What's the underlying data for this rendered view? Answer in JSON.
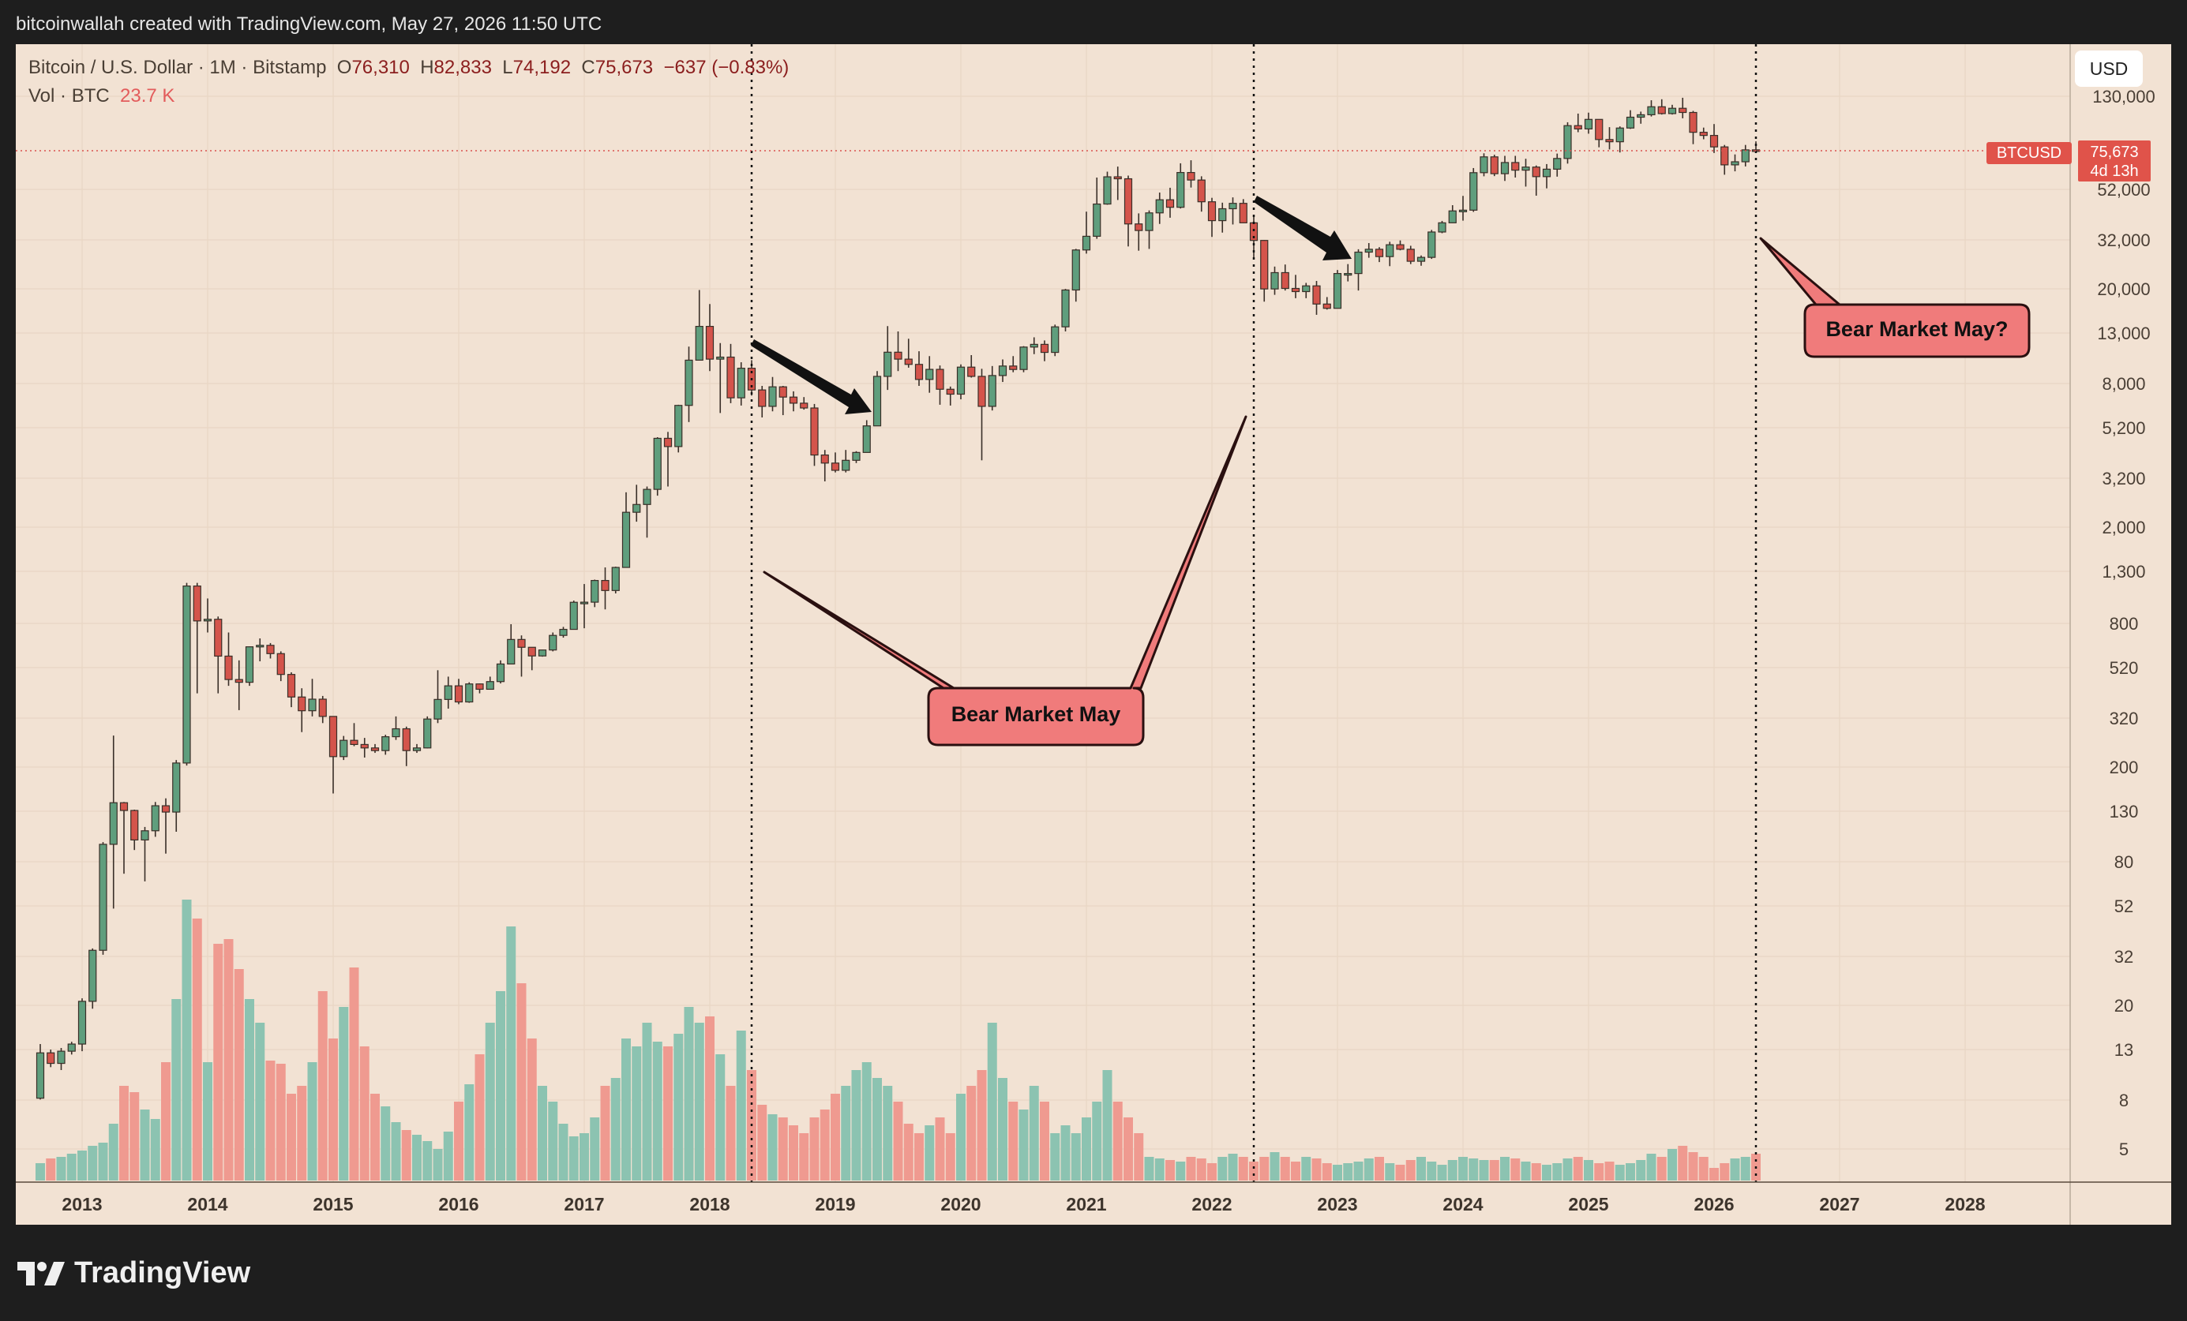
{
  "header": {
    "attribution": "bitcoinwallah created with TradingView.com, May 27, 2026 11:50 UTC"
  },
  "legend": {
    "symbol": "Bitcoin / U.S. Dollar · 1M · Bitstamp",
    "open_label": "O",
    "open": "76,310",
    "high_label": "H",
    "high": "82,833",
    "low_label": "L",
    "low": "74,192",
    "close_label": "C",
    "close": "75,673",
    "change": "−637 (−0.83%)",
    "volume_label": "Vol · BTC",
    "volume": "23.7 K"
  },
  "toolbar": {
    "currency_button": "USD"
  },
  "price_tag": {
    "symbol": "BTCUSD",
    "price": "75,673",
    "countdown": "4d 13h"
  },
  "annotations": {
    "callout_1": "Bear Market May",
    "callout_2": "Bear Market May?"
  },
  "footer": {
    "brand": "TradingView"
  },
  "colors": {
    "background": "#f2e2d3",
    "up": "#5f9e7d",
    "down": "#d4544b",
    "vol_up": "#8cc3b1",
    "vol_down": "#ef9a90",
    "callout_fill": "#f07b7b"
  },
  "chart_data": {
    "type": "candlestick",
    "x_axis": {
      "ticks": [
        "2013",
        "2014",
        "2015",
        "2016",
        "2017",
        "2018",
        "2019",
        "2020",
        "2021",
        "2022",
        "2023",
        "2024",
        "2025",
        "2026",
        "2027",
        "2028"
      ]
    },
    "y_axis": {
      "scale": "log",
      "ticks": [
        "130,000",
        "52,000",
        "32,000",
        "20,000",
        "13,000",
        "8,000",
        "5,200",
        "3,200",
        "2,000",
        "1,300",
        "800",
        "520",
        "320",
        "200",
        "130",
        "80",
        "52",
        "32",
        "20",
        "13",
        "8",
        "5"
      ]
    },
    "vertical_markers": [
      "2018-05",
      "2022-05",
      "2026-05"
    ],
    "last_price": 75673,
    "candles": [
      [
        "2012-09",
        12.4,
        8,
        13.5,
        7.9
      ],
      [
        "2012-10",
        11.2,
        12.4,
        12.8,
        10.8
      ],
      [
        "2012-11",
        12.6,
        11.2,
        13,
        10.5
      ],
      [
        "2012-12",
        13.5,
        12.6,
        13.8,
        12.2
      ],
      [
        "2013-01",
        20.4,
        13.5,
        21,
        12.6
      ],
      [
        "2013-02",
        33.4,
        20.4,
        34,
        19
      ],
      [
        "2013-03",
        93,
        33.4,
        95,
        32
      ],
      [
        "2013-04",
        139,
        93,
        266,
        50
      ],
      [
        "2013-05",
        129,
        139,
        140,
        70
      ],
      [
        "2013-06",
        97,
        129,
        130,
        88
      ],
      [
        "2013-07",
        106,
        97,
        110,
        65
      ],
      [
        "2013-08",
        135,
        106,
        140,
        100
      ],
      [
        "2013-09",
        127,
        135,
        145,
        85
      ],
      [
        "2013-10",
        204,
        127,
        210,
        105
      ],
      [
        "2013-11",
        1128,
        204,
        1163,
        199
      ],
      [
        "2013-12",
        805,
        1128,
        1163,
        400
      ],
      [
        "2014-01",
        818,
        805,
        1000,
        720
      ],
      [
        "2014-02",
        573,
        818,
        840,
        400
      ],
      [
        "2014-03",
        457,
        573,
        720,
        430
      ],
      [
        "2014-04",
        445,
        457,
        550,
        340
      ],
      [
        "2014-05",
        627,
        445,
        630,
        430
      ],
      [
        "2014-06",
        636,
        627,
        680,
        545
      ],
      [
        "2014-07",
        587,
        636,
        650,
        560
      ],
      [
        "2014-08",
        480,
        587,
        600,
        450
      ],
      [
        "2014-09",
        386,
        480,
        490,
        350
      ],
      [
        "2014-10",
        338,
        386,
        420,
        275
      ],
      [
        "2014-11",
        378,
        338,
        460,
        320
      ],
      [
        "2014-12",
        320,
        378,
        390,
        300
      ],
      [
        "2015-01",
        217,
        320,
        320,
        152
      ],
      [
        "2015-02",
        254,
        217,
        265,
        210
      ],
      [
        "2015-03",
        244,
        254,
        300,
        240
      ],
      [
        "2015-04",
        236,
        244,
        260,
        215
      ],
      [
        "2015-05",
        230,
        236,
        245,
        225
      ],
      [
        "2015-06",
        263,
        230,
        268,
        221
      ],
      [
        "2015-07",
        284,
        263,
        320,
        255
      ],
      [
        "2015-08",
        230,
        284,
        290,
        198
      ],
      [
        "2015-09",
        236,
        230,
        245,
        225
      ],
      [
        "2015-10",
        312,
        236,
        320,
        235
      ],
      [
        "2015-11",
        377,
        312,
        500,
        300
      ],
      [
        "2015-12",
        430,
        377,
        470,
        345
      ],
      [
        "2016-01",
        368,
        430,
        460,
        360
      ],
      [
        "2016-02",
        438,
        368,
        445,
        365
      ],
      [
        "2016-03",
        416,
        438,
        440,
        400
      ],
      [
        "2016-04",
        448,
        416,
        470,
        415
      ],
      [
        "2016-05",
        531,
        448,
        550,
        440
      ],
      [
        "2016-06",
        673,
        531,
        780,
        530
      ],
      [
        "2016-07",
        624,
        673,
        700,
        470
      ],
      [
        "2016-08",
        574,
        624,
        625,
        500
      ],
      [
        "2016-09",
        608,
        574,
        610,
        570
      ],
      [
        "2016-10",
        700,
        608,
        720,
        600
      ],
      [
        "2016-11",
        742,
        700,
        760,
        685
      ],
      [
        "2016-12",
        964,
        742,
        980,
        740
      ],
      [
        "2017-01",
        965,
        964,
        1150,
        750
      ],
      [
        "2017-02",
        1190,
        965,
        1200,
        920
      ],
      [
        "2017-03",
        1080,
        1190,
        1350,
        900
      ],
      [
        "2017-04",
        1350,
        1080,
        1360,
        1050
      ],
      [
        "2017-05",
        2300,
        1350,
        2790,
        1350
      ],
      [
        "2017-06",
        2480,
        2300,
        3000,
        2100
      ],
      [
        "2017-07",
        2870,
        2480,
        2950,
        1800
      ],
      [
        "2017-08",
        4700,
        2870,
        4750,
        2700
      ],
      [
        "2017-09",
        4340,
        4700,
        5000,
        2950
      ],
      [
        "2017-10",
        6460,
        4340,
        6500,
        4100
      ],
      [
        "2017-11",
        10000,
        6460,
        11400,
        5500
      ],
      [
        "2017-12",
        13860,
        10000,
        19700,
        10800
      ],
      [
        "2018-01",
        10100,
        13860,
        17200,
        9000
      ],
      [
        "2018-02",
        10300,
        10100,
        11800,
        6000
      ],
      [
        "2018-03",
        6950,
        10300,
        11700,
        6600
      ],
      [
        "2018-04",
        9250,
        6950,
        9800,
        6450
      ],
      [
        "2018-05",
        7500,
        9250,
        10000,
        7100
      ],
      [
        "2018-06",
        6400,
        7500,
        7800,
        5750
      ],
      [
        "2018-07",
        7730,
        6400,
        8500,
        6100
      ],
      [
        "2018-08",
        7000,
        7730,
        7800,
        5880
      ],
      [
        "2018-09",
        6600,
        7000,
        7400,
        6100
      ],
      [
        "2018-10",
        6300,
        6600,
        7000,
        6200
      ],
      [
        "2018-11",
        4000,
        6300,
        6550,
        3600
      ],
      [
        "2018-12",
        3700,
        4000,
        4200,
        3100
      ],
      [
        "2019-01",
        3450,
        3700,
        4100,
        3380
      ],
      [
        "2019-02",
        3800,
        3450,
        4200,
        3380
      ],
      [
        "2019-03",
        4100,
        3800,
        4150,
        3700
      ],
      [
        "2019-04",
        5300,
        4100,
        5600,
        4100
      ],
      [
        "2019-05",
        8550,
        5300,
        9000,
        5300
      ],
      [
        "2019-06",
        10800,
        8550,
        13900,
        7500
      ],
      [
        "2019-07",
        10100,
        10800,
        13200,
        9000
      ],
      [
        "2019-08",
        9600,
        10100,
        12300,
        9300
      ],
      [
        "2019-09",
        8300,
        9600,
        10900,
        7800
      ],
      [
        "2019-10",
        9150,
        8300,
        10400,
        7300
      ],
      [
        "2019-11",
        7550,
        9150,
        9500,
        6500
      ],
      [
        "2019-12",
        7200,
        7550,
        7750,
        6450
      ],
      [
        "2020-01",
        9350,
        7200,
        9600,
        6850
      ],
      [
        "2020-02",
        8550,
        9350,
        10500,
        8450
      ],
      [
        "2020-03",
        6400,
        8550,
        9200,
        3800
      ],
      [
        "2020-04",
        8620,
        6400,
        9450,
        6150
      ],
      [
        "2020-05",
        9450,
        8620,
        10070,
        8100
      ],
      [
        "2020-06",
        9140,
        9450,
        10400,
        8900
      ],
      [
        "2020-07",
        11350,
        9140,
        11450,
        8900
      ],
      [
        "2020-08",
        11650,
        11350,
        12470,
        10600
      ],
      [
        "2020-09",
        10780,
        11650,
        12100,
        9900
      ],
      [
        "2020-10",
        13800,
        10780,
        14100,
        10400
      ],
      [
        "2020-11",
        19700,
        13800,
        19900,
        13200
      ],
      [
        "2020-12",
        29000,
        19700,
        29300,
        17600
      ],
      [
        "2021-01",
        33100,
        29000,
        42000,
        28000
      ],
      [
        "2021-02",
        45200,
        33100,
        58400,
        32300
      ],
      [
        "2021-03",
        58800,
        45200,
        61800,
        44900
      ],
      [
        "2021-04",
        57700,
        58800,
        64900,
        47000
      ],
      [
        "2021-05",
        37300,
        57700,
        59500,
        30000
      ],
      [
        "2021-06",
        35000,
        37300,
        41300,
        28800
      ],
      [
        "2021-07",
        41500,
        35000,
        42500,
        29300
      ],
      [
        "2021-08",
        47100,
        41500,
        50500,
        37300
      ],
      [
        "2021-09",
        43800,
        47100,
        52900,
        39600
      ],
      [
        "2021-10",
        61300,
        43800,
        67000,
        43300
      ],
      [
        "2021-11",
        57000,
        61300,
        69000,
        53000
      ],
      [
        "2021-12",
        46200,
        57000,
        59100,
        42000
      ],
      [
        "2022-01",
        38500,
        46200,
        48000,
        32900
      ],
      [
        "2022-02",
        43200,
        38500,
        45800,
        34300
      ],
      [
        "2022-03",
        45500,
        43200,
        48200,
        37100
      ],
      [
        "2022-04",
        37700,
        45500,
        47400,
        37600
      ],
      [
        "2022-05",
        31800,
        37700,
        40000,
        26700
      ],
      [
        "2022-06",
        19900,
        31800,
        31900,
        17600
      ],
      [
        "2022-07",
        23300,
        19900,
        24700,
        18800
      ],
      [
        "2022-08",
        20000,
        23300,
        25200,
        19600
      ],
      [
        "2022-09",
        19400,
        20000,
        22800,
        18200
      ],
      [
        "2022-10",
        20500,
        19400,
        21100,
        18200
      ],
      [
        "2022-11",
        17200,
        20500,
        21500,
        15500
      ],
      [
        "2022-12",
        16500,
        17200,
        18400,
        16300
      ],
      [
        "2023-01",
        23100,
        16500,
        23900,
        16500
      ],
      [
        "2023-02",
        23100,
        23100,
        25300,
        21400
      ],
      [
        "2023-03",
        28400,
        23100,
        29200,
        19600
      ],
      [
        "2023-04",
        29200,
        28400,
        31000,
        26900
      ],
      [
        "2023-05",
        27200,
        29200,
        29800,
        25800
      ],
      [
        "2023-06",
        30500,
        27200,
        31400,
        24800
      ],
      [
        "2023-07",
        29200,
        30500,
        31800,
        28900
      ],
      [
        "2023-08",
        26000,
        29200,
        30200,
        25300
      ],
      [
        "2023-09",
        27000,
        26000,
        27500,
        24900
      ],
      [
        "2023-10",
        34500,
        27000,
        35200,
        26600
      ],
      [
        "2023-11",
        37700,
        34500,
        38400,
        34100
      ],
      [
        "2023-12",
        42300,
        37700,
        44700,
        37600
      ],
      [
        "2024-01",
        42600,
        42300,
        48900,
        38500
      ],
      [
        "2024-02",
        61200,
        42600,
        64000,
        41900
      ],
      [
        "2024-03",
        71300,
        61200,
        73800,
        59100
      ],
      [
        "2024-04",
        60600,
        71300,
        72800,
        59200
      ],
      [
        "2024-05",
        67500,
        60600,
        72000,
        56500
      ],
      [
        "2024-06",
        62700,
        67500,
        72000,
        58400
      ],
      [
        "2024-07",
        64600,
        62700,
        70000,
        53500
      ],
      [
        "2024-08",
        58900,
        64600,
        65600,
        49000
      ],
      [
        "2024-09",
        63300,
        58900,
        66500,
        52600
      ],
      [
        "2024-10",
        70200,
        63300,
        73600,
        58900
      ],
      [
        "2024-11",
        96400,
        70200,
        99600,
        66800
      ],
      [
        "2024-12",
        93400,
        96400,
        108300,
        90500
      ],
      [
        "2025-01",
        102400,
        93400,
        109300,
        89200
      ],
      [
        "2025-02",
        84300,
        102400,
        102500,
        78200
      ],
      [
        "2025-03",
        82500,
        84300,
        95000,
        76600
      ],
      [
        "2025-04",
        94200,
        82500,
        95700,
        74400
      ],
      [
        "2025-05",
        104600,
        94200,
        111900,
        93400
      ],
      [
        "2025-06",
        107100,
        104600,
        110400,
        98200
      ],
      [
        "2025-07",
        115700,
        107100,
        123200,
        105300
      ],
      [
        "2025-08",
        108300,
        115700,
        124400,
        107300
      ],
      [
        "2025-09",
        114000,
        108300,
        117900,
        107300
      ],
      [
        "2025-10",
        109500,
        114000,
        126200,
        103500
      ],
      [
        "2025-11",
        90400,
        109500,
        111200,
        80600
      ],
      [
        "2025-12",
        87700,
        90400,
        94600,
        84500
      ],
      [
        "2026-01",
        78500,
        87700,
        97900,
        74000
      ],
      [
        "2026-02",
        66000,
        78500,
        80000,
        60000
      ],
      [
        "2026-03",
        68000,
        66000,
        73000,
        62000
      ],
      [
        "2026-04",
        76300,
        68000,
        80000,
        65000
      ],
      [
        "2026-05",
        75673,
        76310,
        82833,
        74192
      ]
    ]
  }
}
